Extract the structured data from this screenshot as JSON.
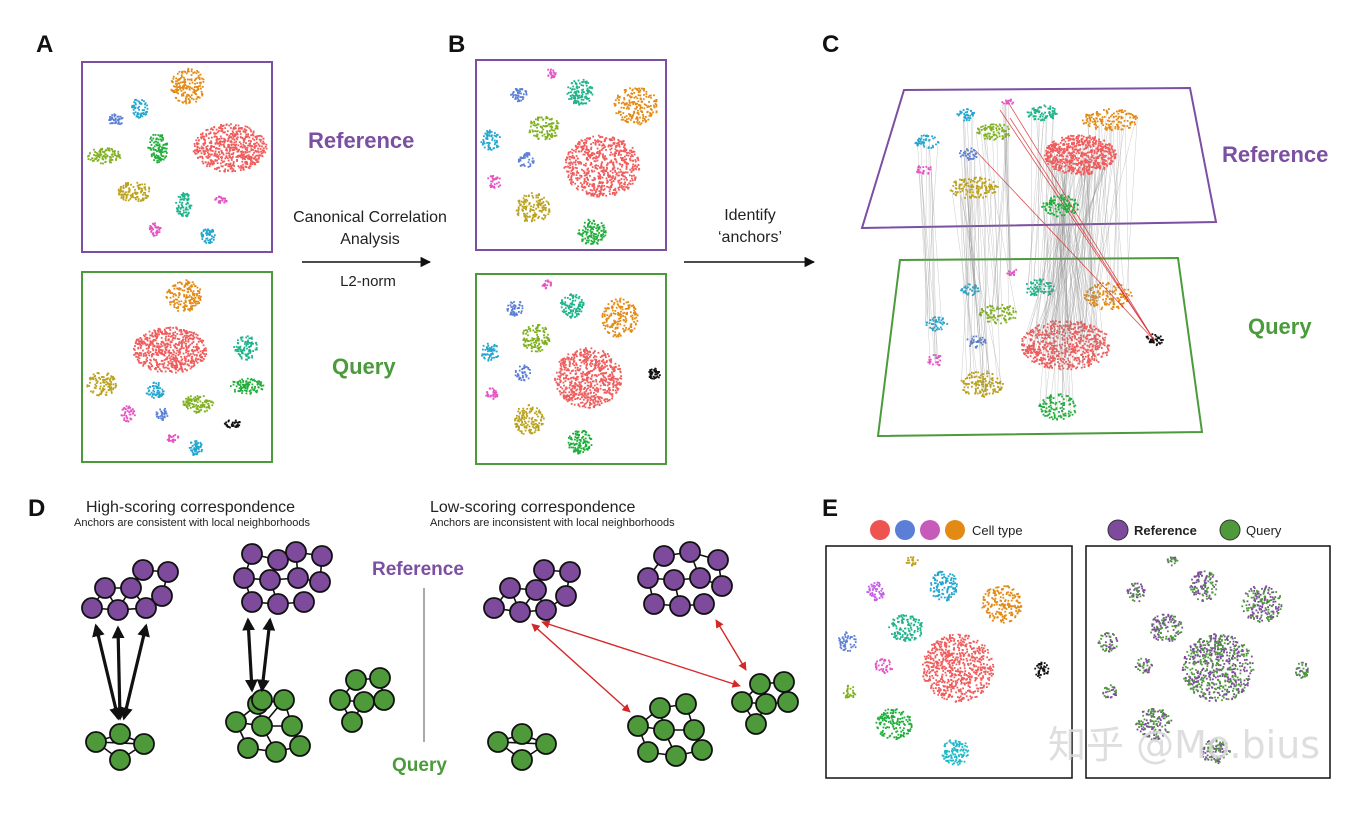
{
  "panels": {
    "a": {
      "label": "A"
    },
    "b": {
      "label": "B"
    },
    "c": {
      "label": "C"
    },
    "d": {
      "label": "D"
    },
    "e": {
      "label": "E"
    }
  },
  "labels": {
    "reference": "Reference",
    "query": "Query"
  },
  "arrows": {
    "cca_line1": "Canonical Correlation",
    "cca_line2": "Analysis",
    "l2norm": "L2-norm",
    "identify_line1": "Identify",
    "identify_line2": "‘anchors’"
  },
  "panel_d": {
    "high_title": "High-scoring correspondence",
    "high_sub": "Anchors are consistent with local neighborhoods",
    "low_title": "Low-scoring correspondence",
    "low_sub": "Anchors are inconsistent with local neighborhoods",
    "reference": "Reference",
    "query": "Query"
  },
  "panel_e": {
    "cell_type": "Cell type",
    "reference": "Reference",
    "query": "Query"
  },
  "watermark": "知乎 @Mo.bius",
  "colors": {
    "reference_purple": "#7b4fa1",
    "query_green": "#4b9b3c",
    "anchor_red": "#d62728",
    "node_purple": "#7d4a9c",
    "node_green": "#4e9a3a"
  }
}
